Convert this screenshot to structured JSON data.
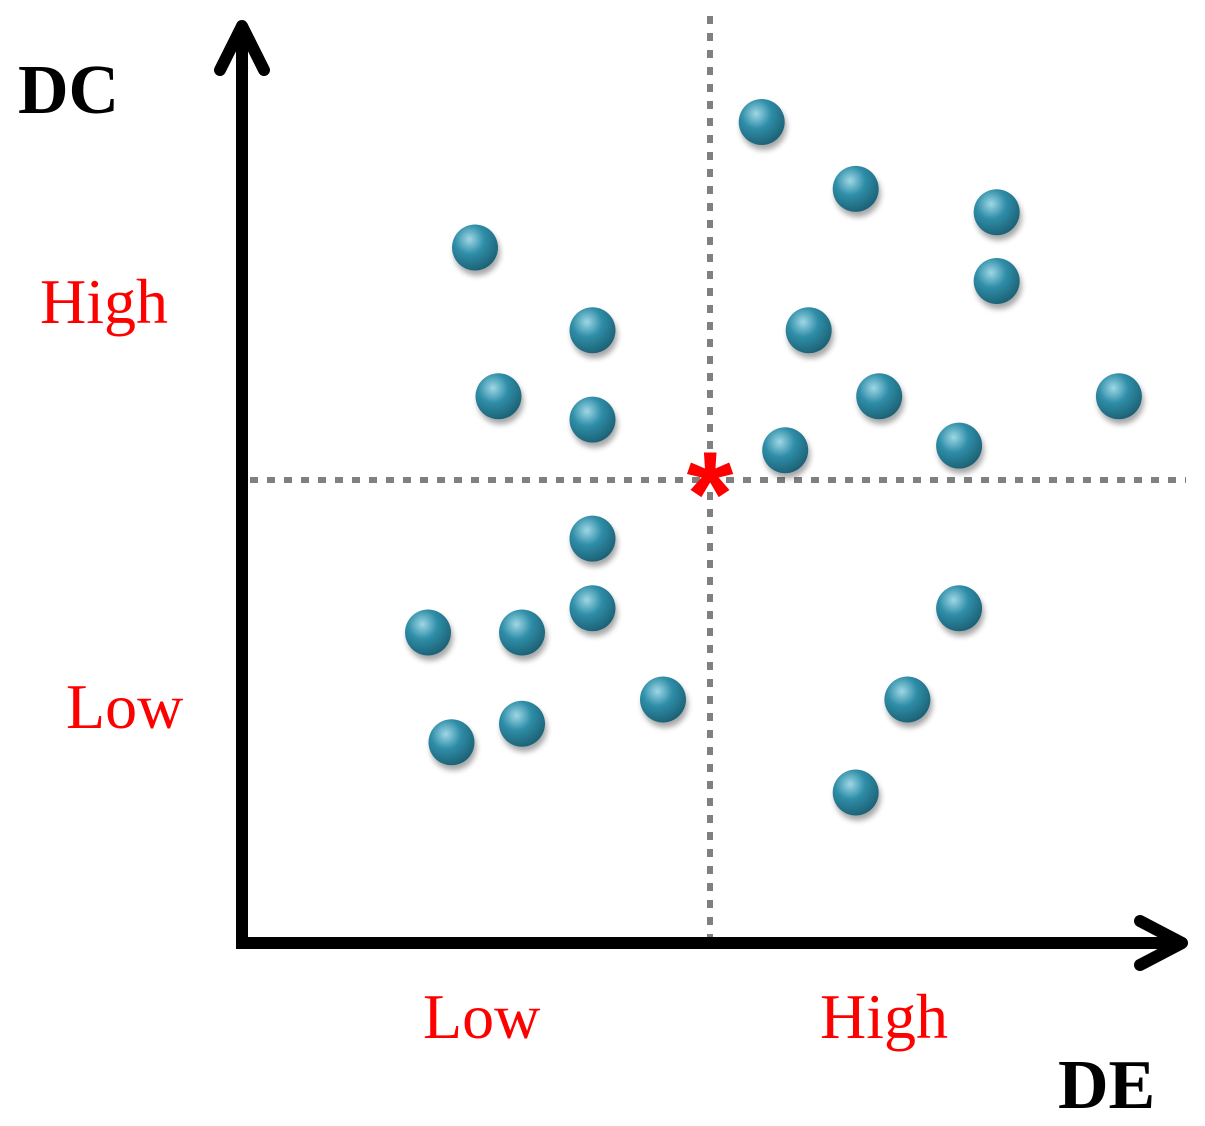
{
  "chart_data": {
    "type": "scatter",
    "title": "",
    "xlabel": "DE",
    "ylabel": "DC",
    "xlim": [
      0,
      100
    ],
    "ylim": [
      0,
      100
    ],
    "grid": false,
    "x_tick_labels": [
      "Low",
      "High"
    ],
    "y_tick_labels": [
      "High",
      "Low"
    ],
    "threshold": {
      "x": 50,
      "y": 50
    },
    "threshold_label": "*",
    "colors": {
      "point": "#2f8ea8",
      "point_highlight": "#9fd7e6",
      "point_shadow": "#1c5f73",
      "threshold_line": "#808080",
      "threshold_marker": "#ff0000",
      "tick_label": "#ff0000",
      "axis": "#000000"
    },
    "series": [
      {
        "values": [
          {
            "x": 55.5,
            "y": 88.5
          },
          {
            "x": 65.5,
            "y": 81.3
          },
          {
            "x": 80.5,
            "y": 78.8
          },
          {
            "x": 25.0,
            "y": 75.0
          },
          {
            "x": 80.5,
            "y": 71.4
          },
          {
            "x": 37.5,
            "y": 66.1
          },
          {
            "x": 60.5,
            "y": 66.1
          },
          {
            "x": 27.5,
            "y": 59.0
          },
          {
            "x": 68.0,
            "y": 59.0
          },
          {
            "x": 93.5,
            "y": 59.0
          },
          {
            "x": 37.5,
            "y": 56.5
          },
          {
            "x": 76.5,
            "y": 53.7
          },
          {
            "x": 58.0,
            "y": 53.2
          },
          {
            "x": 37.5,
            "y": 43.7
          },
          {
            "x": 37.5,
            "y": 36.2
          },
          {
            "x": 76.5,
            "y": 36.2
          },
          {
            "x": 20.0,
            "y": 33.6
          },
          {
            "x": 30.0,
            "y": 33.6
          },
          {
            "x": 45.0,
            "y": 26.4
          },
          {
            "x": 71.0,
            "y": 26.4
          },
          {
            "x": 30.0,
            "y": 23.8
          },
          {
            "x": 22.5,
            "y": 21.8
          },
          {
            "x": 65.5,
            "y": 16.4
          }
        ]
      }
    ]
  }
}
